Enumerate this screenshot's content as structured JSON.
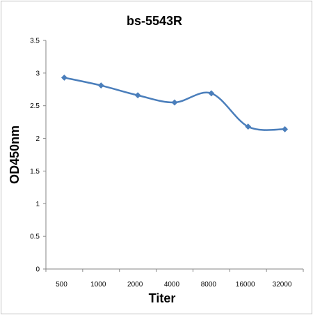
{
  "chart_data": {
    "type": "line",
    "title": "bs-5543R",
    "xlabel": "Titer",
    "ylabel": "OD450nm",
    "categories": [
      "500",
      "1000",
      "2000",
      "4000",
      "8000",
      "16000",
      "32000"
    ],
    "y_ticks": [
      "0",
      "0.5",
      "1",
      "1.5",
      "2",
      "2.5",
      "3",
      "3.5"
    ],
    "ylim": [
      0,
      3.5
    ],
    "series": [
      {
        "values": [
          2.93,
          2.81,
          2.66,
          2.55,
          2.69,
          2.18,
          2.14
        ],
        "color": "#4a7ebb",
        "marker": "diamond",
        "smooth": true
      }
    ],
    "grid": false,
    "legend": "none"
  }
}
